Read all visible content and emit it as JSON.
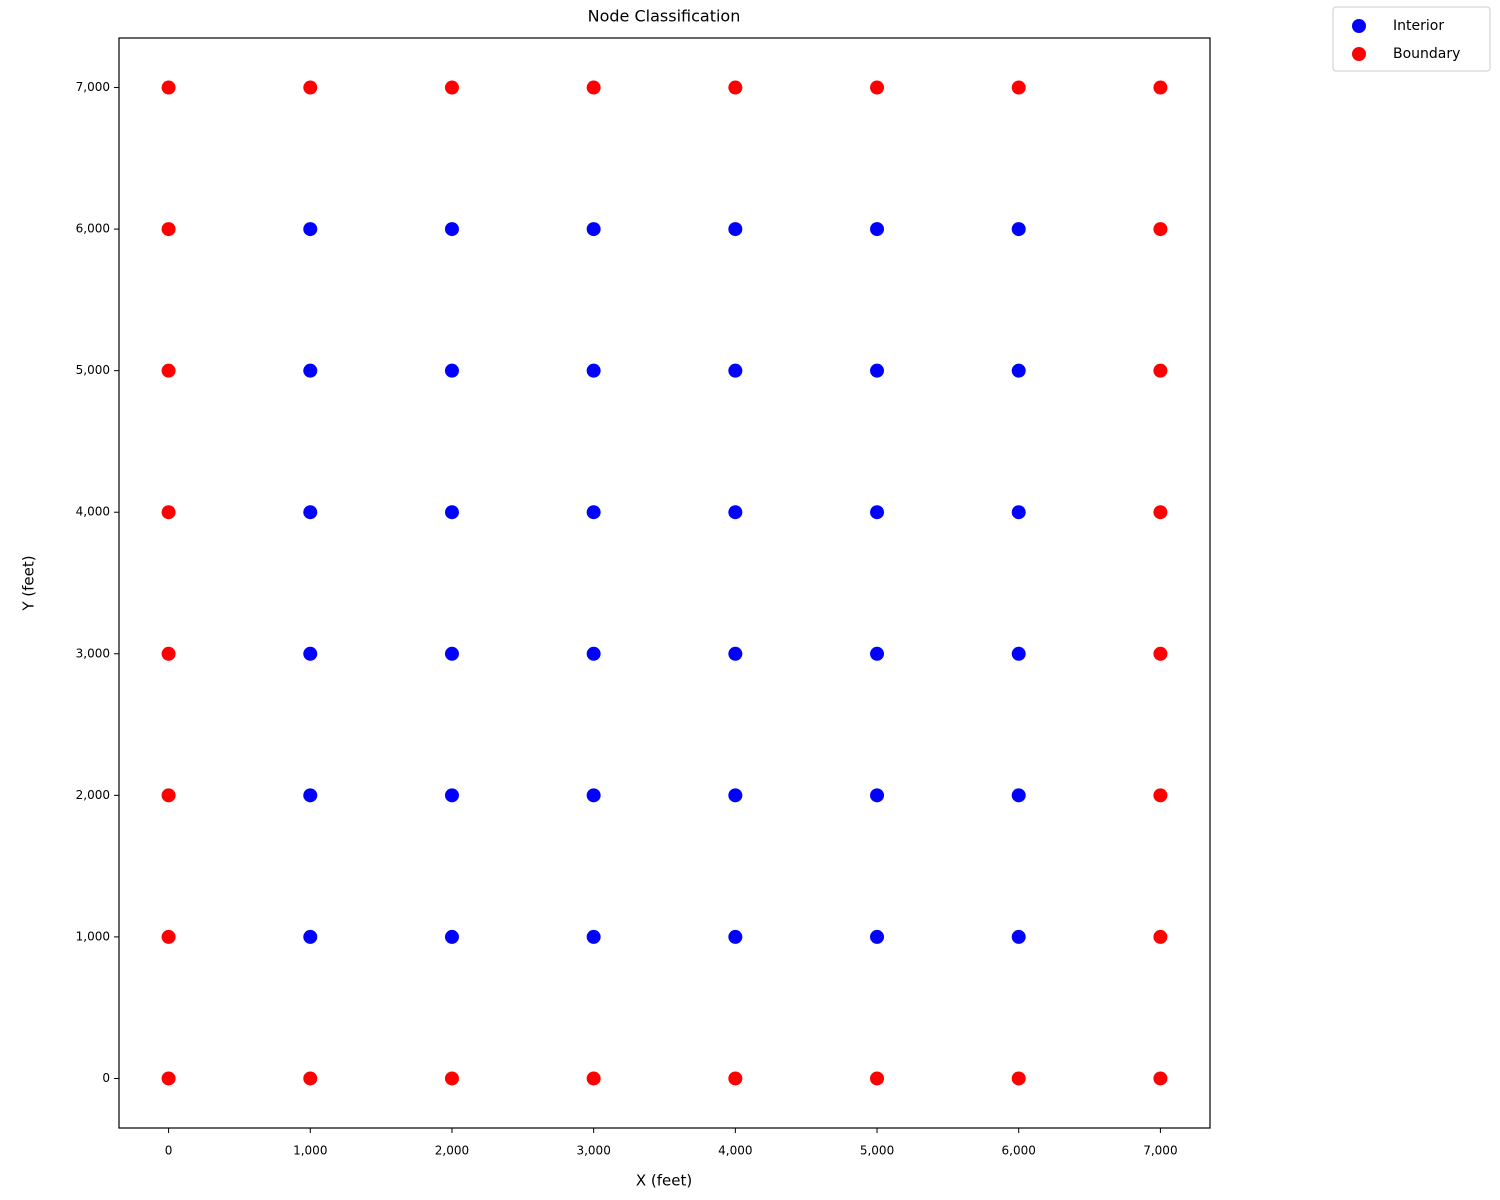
{
  "chart_data": {
    "type": "scatter",
    "title": "Node Classification",
    "x_label": "X (feet)",
    "y_label": "Y (feet)",
    "legend": "outside-right",
    "series": [
      {
        "name": "Interior",
        "color": "#0000ff",
        "x": [
          1000,
          2000,
          3000,
          4000,
          5000,
          6000,
          1000,
          2000,
          3000,
          4000,
          5000,
          6000,
          1000,
          2000,
          3000,
          4000,
          5000,
          6000,
          1000,
          2000,
          3000,
          4000,
          5000,
          6000,
          1000,
          2000,
          3000,
          4000,
          5000,
          6000,
          1000,
          2000,
          3000,
          4000,
          5000,
          6000
        ],
        "values": [
          1000,
          1000,
          1000,
          1000,
          1000,
          1000,
          2000,
          2000,
          2000,
          2000,
          2000,
          2000,
          3000,
          3000,
          3000,
          3000,
          3000,
          3000,
          4000,
          4000,
          4000,
          4000,
          4000,
          4000,
          5000,
          5000,
          5000,
          5000,
          5000,
          5000,
          6000,
          6000,
          6000,
          6000,
          6000,
          6000
        ]
      },
      {
        "name": "Boundary",
        "color": "#ff0000",
        "x": [
          0,
          1000,
          2000,
          3000,
          4000,
          5000,
          6000,
          7000,
          0,
          1000,
          2000,
          3000,
          4000,
          5000,
          6000,
          7000,
          0,
          0,
          0,
          0,
          0,
          0,
          7000,
          7000,
          7000,
          7000,
          7000,
          7000
        ],
        "values": [
          0,
          0,
          0,
          0,
          0,
          0,
          0,
          0,
          7000,
          7000,
          7000,
          7000,
          7000,
          7000,
          7000,
          7000,
          1000,
          2000,
          3000,
          4000,
          5000,
          6000,
          1000,
          2000,
          3000,
          4000,
          5000,
          6000
        ]
      }
    ],
    "xlim": [
      -350,
      7350
    ],
    "ylim": [
      -350,
      7350
    ],
    "xticks": [
      0,
      {
        "value": 1000,
        "label": "1,000"
      },
      {
        "value": 2000,
        "label": "2,000"
      },
      {
        "value": 3000,
        "label": "3,000"
      },
      {
        "value": 4000,
        "label": "4,000"
      },
      {
        "value": 5000,
        "label": "5,000"
      },
      {
        "value": 6000,
        "label": "6,000"
      },
      {
        "value": 7000,
        "label": "7,000"
      }
    ],
    "yticks": [
      0,
      {
        "value": 1000,
        "label": "1,000"
      },
      {
        "value": 2000,
        "label": "2,000"
      },
      {
        "value": 3000,
        "label": "3,000"
      },
      {
        "value": 4000,
        "label": "4,000"
      },
      {
        "value": 5000,
        "label": "5,000"
      },
      {
        "value": 6000,
        "label": "6,000"
      },
      {
        "value": 7000,
        "label": "7,000"
      }
    ],
    "grid": false
  }
}
